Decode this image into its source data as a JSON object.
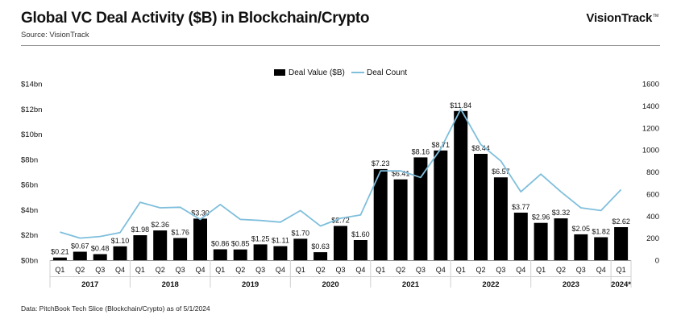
{
  "header": {
    "title": "Global VC Deal Activity ($B) in Blockchain/Crypto",
    "source": "Source: VisionTrack",
    "brand": "VisionTrack",
    "brand_mark": "TM"
  },
  "footer": {
    "note": "Data: PitchBook Tech Slice (Blockchain/Crypto) as of 5/1/2024"
  },
  "colors": {
    "bar": "#000000",
    "line": "#7fbfdc",
    "axis": "#8c8c8c"
  },
  "chart_data": {
    "type": "bar",
    "title": "Global VC Deal Activity ($B) in Blockchain/Crypto",
    "legend": [
      "Deal Value ($B)",
      "Deal Count"
    ],
    "legend_position": "top-center",
    "categories": [
      "Q1",
      "Q2",
      "Q3",
      "Q4",
      "Q1",
      "Q2",
      "Q3",
      "Q4",
      "Q1",
      "Q2",
      "Q3",
      "Q4",
      "Q1",
      "Q2",
      "Q3",
      "Q4",
      "Q1",
      "Q2",
      "Q3",
      "Q4",
      "Q1",
      "Q2",
      "Q3",
      "Q4",
      "Q1",
      "Q2",
      "Q3",
      "Q4",
      "Q1"
    ],
    "years": [
      {
        "label": "2017",
        "start": 0,
        "count": 4
      },
      {
        "label": "2018",
        "start": 4,
        "count": 4
      },
      {
        "label": "2019",
        "start": 8,
        "count": 4
      },
      {
        "label": "2020",
        "start": 12,
        "count": 4
      },
      {
        "label": "2021",
        "start": 16,
        "count": 4
      },
      {
        "label": "2022",
        "start": 20,
        "count": 4
      },
      {
        "label": "2023",
        "start": 24,
        "count": 4
      },
      {
        "label": "2024*",
        "start": 28,
        "count": 1
      }
    ],
    "series": [
      {
        "name": "Deal Value ($B)",
        "type": "bar",
        "axis": "left",
        "values": [
          0.21,
          0.67,
          0.48,
          1.1,
          1.98,
          2.36,
          1.76,
          3.3,
          0.86,
          0.85,
          1.25,
          1.11,
          1.7,
          0.63,
          2.72,
          1.6,
          7.23,
          6.41,
          8.16,
          8.71,
          11.84,
          8.44,
          6.57,
          3.77,
          2.96,
          3.32,
          2.05,
          1.82,
          2.62
        ],
        "labels": [
          "$0.21",
          "$0.67",
          "$0.48",
          "$1.10",
          "$1.98",
          "$2.36",
          "$1.76",
          "$3.30",
          "$0.86",
          "$0.85",
          "$1.25",
          "$1.11",
          "$1.70",
          "$0.63",
          "$2.72",
          "$1.60",
          "$7.23",
          "$6.41",
          "$8.16",
          "$8.71",
          "$11.84",
          "$8.44",
          "$6.57",
          "$3.77",
          "$2.96",
          "$3.32",
          "$2.05",
          "$1.82",
          "$2.62"
        ]
      },
      {
        "name": "Deal Count",
        "type": "line",
        "axis": "right",
        "values": [
          255,
          200,
          215,
          250,
          525,
          475,
          480,
          370,
          505,
          370,
          360,
          345,
          450,
          310,
          380,
          410,
          810,
          810,
          750,
          1010,
          1370,
          1050,
          900,
          620,
          780,
          620,
          475,
          450,
          640
        ]
      }
    ],
    "y_left": {
      "min": 0,
      "max": 14,
      "ticks": [
        "$0bn",
        "$2bn",
        "$4bn",
        "$6bn",
        "$8bn",
        "$10bn",
        "$12bn",
        "$14bn"
      ]
    },
    "y_right": {
      "min": 0,
      "max": 1600,
      "ticks": [
        "0",
        "200",
        "400",
        "600",
        "800",
        "1000",
        "1200",
        "1400",
        "1600"
      ]
    },
    "grid": false
  }
}
